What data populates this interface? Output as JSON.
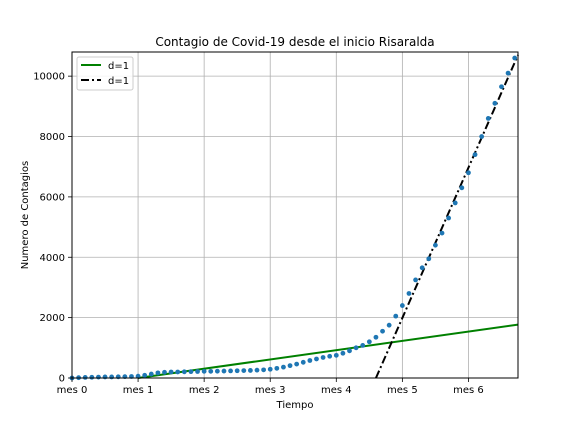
{
  "chart_data": {
    "type": "line",
    "title": "Contagio de Covid-19 desde el inicio Risaralda",
    "xlabel": "Tiempo",
    "ylabel": "Numero de Contagios",
    "xlim": [
      0,
      6.75
    ],
    "ylim": [
      0,
      10800
    ],
    "grid": true,
    "legend_position": "top-left",
    "x_ticks": [
      {
        "value": 0,
        "label": "mes 0"
      },
      {
        "value": 1,
        "label": "mes 1"
      },
      {
        "value": 2,
        "label": "mes 2"
      },
      {
        "value": 3,
        "label": "mes 3"
      },
      {
        "value": 4,
        "label": "mes 4"
      },
      {
        "value": 5,
        "label": "mes 5"
      },
      {
        "value": 6,
        "label": "mes 6"
      }
    ],
    "y_ticks": [
      {
        "value": 0,
        "label": "0"
      },
      {
        "value": 2000,
        "label": "2000"
      },
      {
        "value": 4000,
        "label": "4000"
      },
      {
        "value": 6000,
        "label": "6000"
      },
      {
        "value": 8000,
        "label": "8000"
      },
      {
        "value": 10000,
        "label": "10000"
      }
    ],
    "series": [
      {
        "name": "d=1",
        "kind": "line",
        "color": "#008000",
        "style": "solid",
        "x": [
          1.0,
          6.75
        ],
        "y": [
          0,
          1770
        ]
      },
      {
        "name": "d=1",
        "kind": "line",
        "color": "#000000",
        "style": "dashdot",
        "x": [
          4.6,
          6.75
        ],
        "y": [
          0,
          10700
        ]
      },
      {
        "name": "",
        "kind": "scatter",
        "color": "#1f77b4",
        "x": [
          0.0,
          0.1,
          0.2,
          0.3,
          0.4,
          0.5,
          0.6,
          0.7,
          0.8,
          0.9,
          1.0,
          1.1,
          1.2,
          1.3,
          1.4,
          1.5,
          1.6,
          1.7,
          1.8,
          1.9,
          2.0,
          2.1,
          2.2,
          2.3,
          2.4,
          2.5,
          2.6,
          2.7,
          2.8,
          2.9,
          3.0,
          3.1,
          3.2,
          3.3,
          3.4,
          3.5,
          3.6,
          3.7,
          3.8,
          3.9,
          4.0,
          4.1,
          4.2,
          4.3,
          4.4,
          4.5,
          4.6,
          4.7,
          4.8,
          4.9,
          5.0,
          5.1,
          5.2,
          5.3,
          5.4,
          5.5,
          5.6,
          5.7,
          5.8,
          5.9,
          6.0,
          6.1,
          6.2,
          6.3,
          6.4,
          6.5,
          6.6,
          6.7
        ],
        "y": [
          0,
          10,
          20,
          25,
          30,
          35,
          35,
          40,
          45,
          50,
          60,
          90,
          130,
          170,
          190,
          200,
          200,
          205,
          210,
          215,
          220,
          220,
          225,
          230,
          235,
          240,
          245,
          250,
          260,
          270,
          290,
          320,
          360,
          410,
          460,
          520,
          580,
          630,
          680,
          720,
          750,
          820,
          900,
          1000,
          1080,
          1200,
          1350,
          1550,
          1750,
          2050,
          2400,
          2800,
          3250,
          3650,
          3950,
          4400,
          4800,
          5300,
          5800,
          6300,
          6800,
          7400,
          8000,
          8600,
          9100,
          9650,
          10100,
          10600
        ]
      }
    ]
  }
}
